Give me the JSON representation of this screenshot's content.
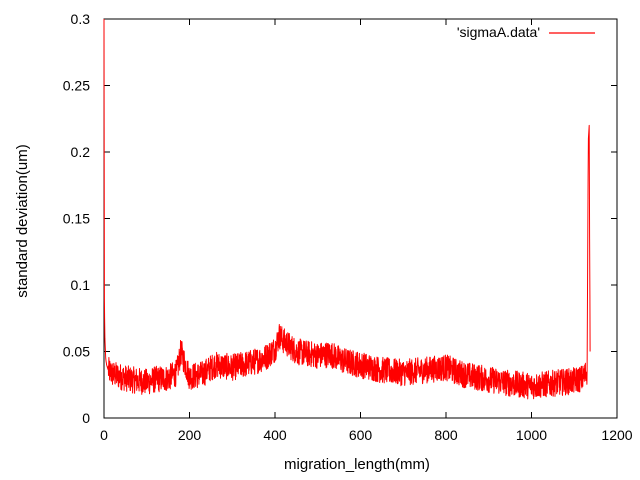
{
  "chart_data": {
    "type": "line",
    "title": "",
    "xlabel": "migration_length(mm)",
    "ylabel": "standard deviation(um)",
    "xlim": [
      0,
      1200
    ],
    "ylim": [
      0,
      0.3
    ],
    "x_ticks": [
      "0",
      "200",
      "400",
      "600",
      "800",
      "1000",
      "1200"
    ],
    "y_ticks": [
      "0",
      "0.05",
      "0.1",
      "0.15",
      "0.2",
      "0.25",
      "0.3"
    ],
    "grid": false,
    "legend_position": "top-right",
    "series": [
      {
        "name": "'sigmaA.data'",
        "color": "#ff0000",
        "x": [
          0,
          1,
          2,
          4,
          6,
          10,
          20,
          40,
          60,
          80,
          100,
          120,
          150,
          170,
          180,
          200,
          230,
          260,
          300,
          350,
          380,
          400,
          410,
          420,
          450,
          500,
          530,
          560,
          600,
          650,
          700,
          750,
          800,
          830,
          850,
          900,
          950,
          1000,
          1050,
          1100,
          1120,
          1130,
          1133,
          1135,
          1137
        ],
        "y": [
          0.3,
          0.09,
          0.06,
          0.045,
          0.04,
          0.036,
          0.033,
          0.031,
          0.029,
          0.028,
          0.027,
          0.029,
          0.03,
          0.034,
          0.05,
          0.031,
          0.033,
          0.04,
          0.038,
          0.042,
          0.046,
          0.052,
          0.062,
          0.058,
          0.05,
          0.047,
          0.048,
          0.043,
          0.04,
          0.036,
          0.034,
          0.036,
          0.038,
          0.034,
          0.032,
          0.029,
          0.026,
          0.024,
          0.026,
          0.028,
          0.03,
          0.035,
          0.21,
          0.22,
          0.05
        ]
      }
    ]
  }
}
